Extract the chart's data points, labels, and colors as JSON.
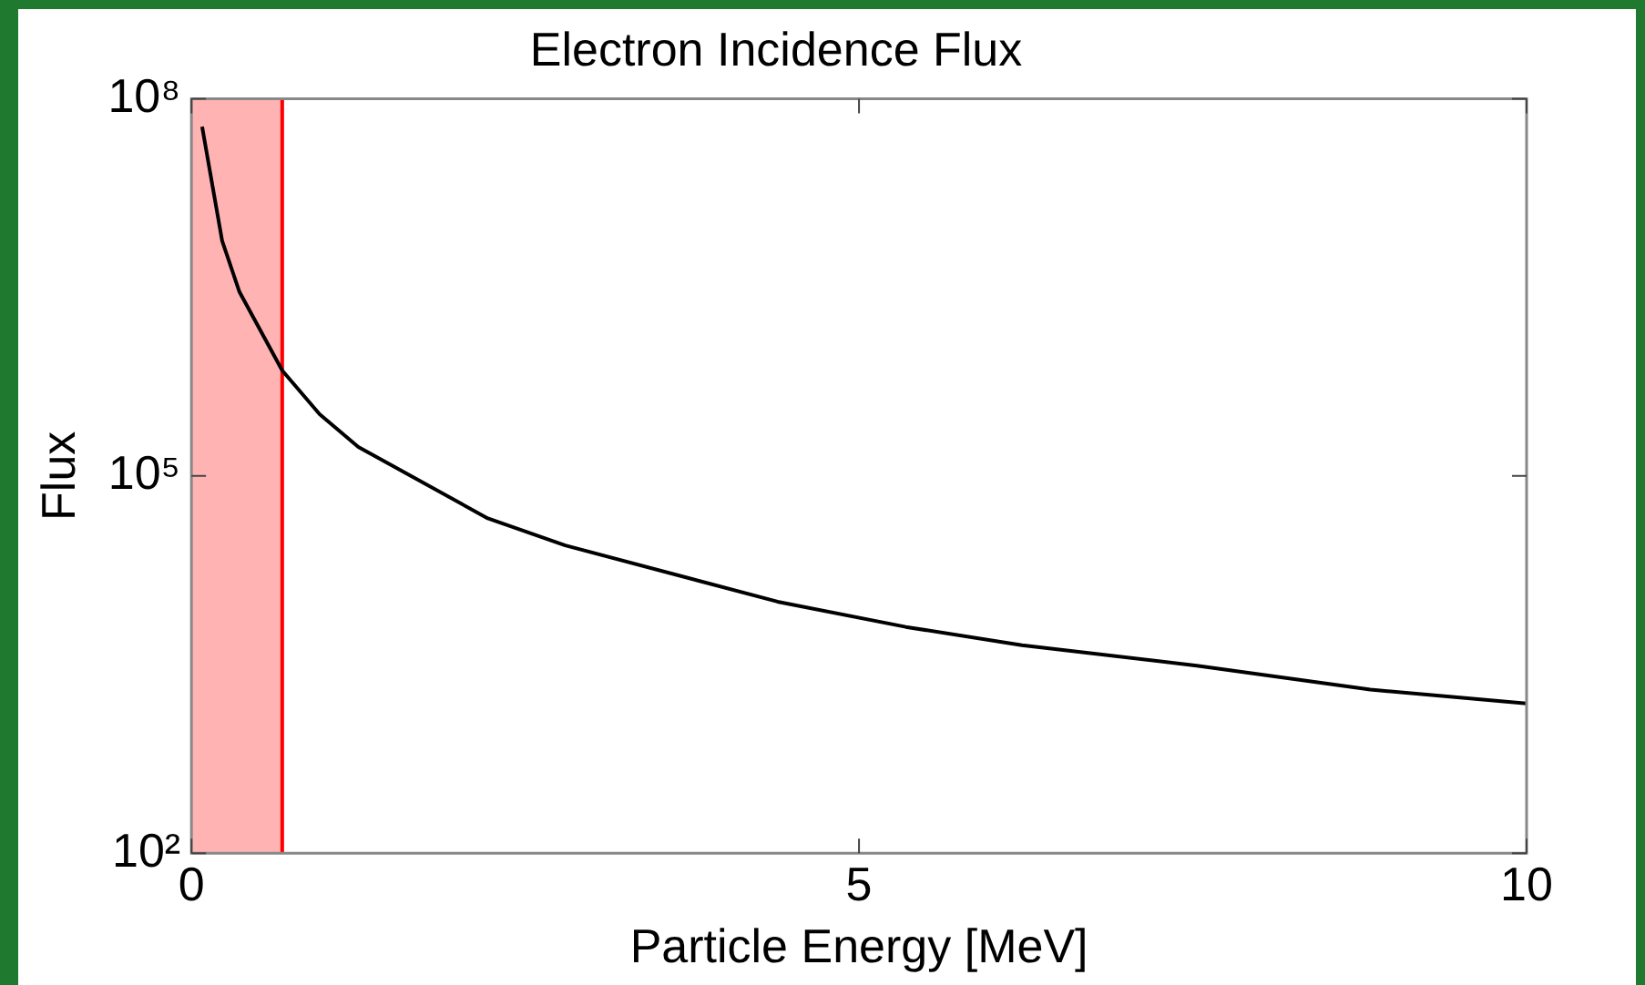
{
  "chart_data": {
    "type": "line",
    "title": "Electron Incidence Flux",
    "xlabel": "Particle Energy [MeV]",
    "ylabel": "Flux",
    "x": [
      0.08,
      0.23,
      0.36,
      0.68,
      0.96,
      1.25,
      2.22,
      2.8,
      4.39,
      5.35,
      6.22,
      7.53,
      8.83,
      10.0
    ],
    "series": [
      {
        "color": "#000000",
        "values": [
          60000000.0,
          7400000.0,
          2900000.0,
          690000.0,
          310000.0,
          170000.0,
          46000.0,
          28000.0,
          10000.0,
          6300.0,
          4500.0,
          3100.0,
          2000.0,
          1550.0
        ]
      }
    ],
    "log": "y",
    "xlim": [
      0,
      10
    ],
    "xticks": [
      0,
      5,
      10
    ],
    "ylim": [
      100,
      100000000
    ],
    "yticks": [
      {
        "value": 100,
        "label": "10²"
      },
      {
        "value": 100000,
        "label": "10⁵"
      },
      {
        "value": 100000000,
        "label": "10⁸"
      }
    ],
    "bands": [
      {
        "axis": "x",
        "from": 0,
        "to": 0.68,
        "color": "#ffb3b3"
      }
    ],
    "ref_lines": [
      {
        "axis": "x",
        "value": 0.68,
        "color": "#ff0000"
      }
    ],
    "grid": false,
    "legend": false,
    "marker": "none",
    "line_style": "solid"
  }
}
